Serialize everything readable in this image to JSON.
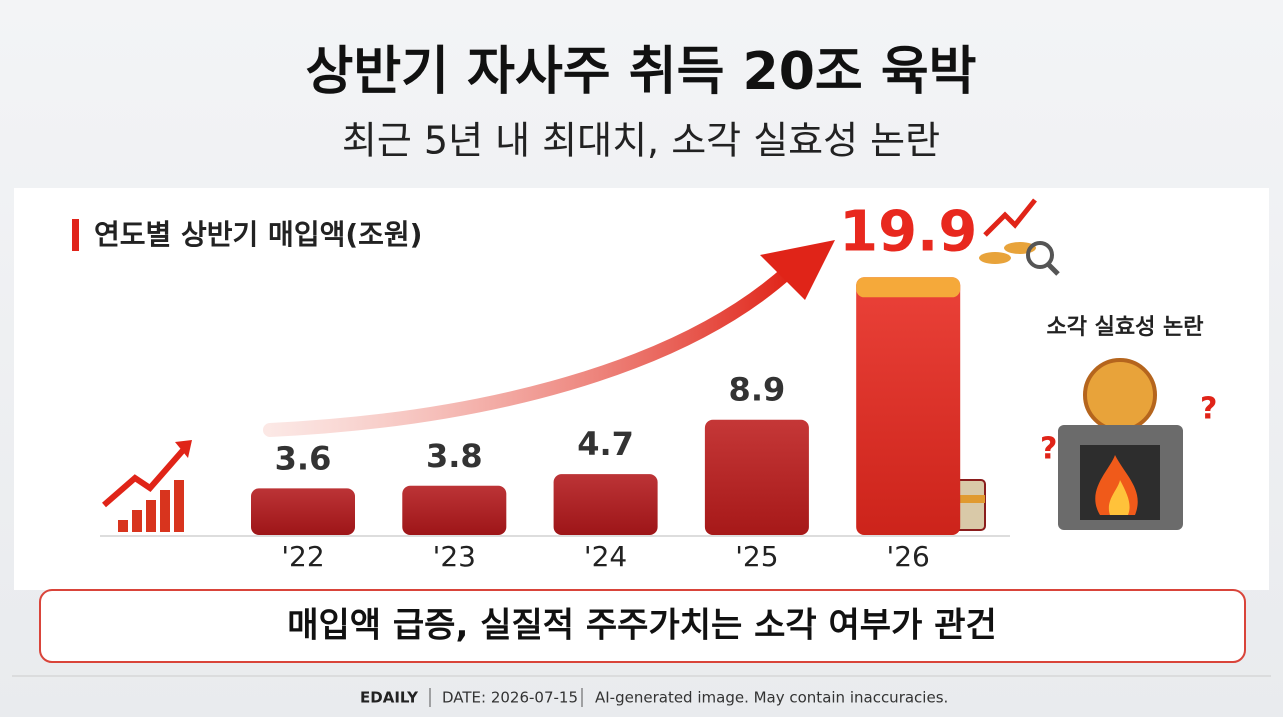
{
  "chart_data": {
    "type": "bar",
    "title": "상반기 자사주 취득 20조 육박",
    "subtitle": "최근 5년 내 최대치, 소각 실효성 논란",
    "chart_title": "연도별 상반기 매입액(조원)",
    "categories": [
      "'22",
      "'23",
      "'24",
      "'25",
      "'26"
    ],
    "values": [
      3.6,
      3.8,
      4.7,
      8.9,
      19.9
    ],
    "colors": [
      "#b3181b",
      "#b3181b",
      "#b3181b",
      "#bd1c1c",
      "#e8281e"
    ],
    "label_colors": [
      "#333333",
      "#333333",
      "#333333",
      "#333333",
      "#e8281e"
    ],
    "side_note": "소각 실효성 논란",
    "banner": "매입액 급증, 실질적 주주가치는 소각 여부가 관건"
  },
  "footer": {
    "source": "EDAILY",
    "date": "DATE: 2026-07-15",
    "disclaimer": "AI-generated image. May contain inaccuracies."
  }
}
